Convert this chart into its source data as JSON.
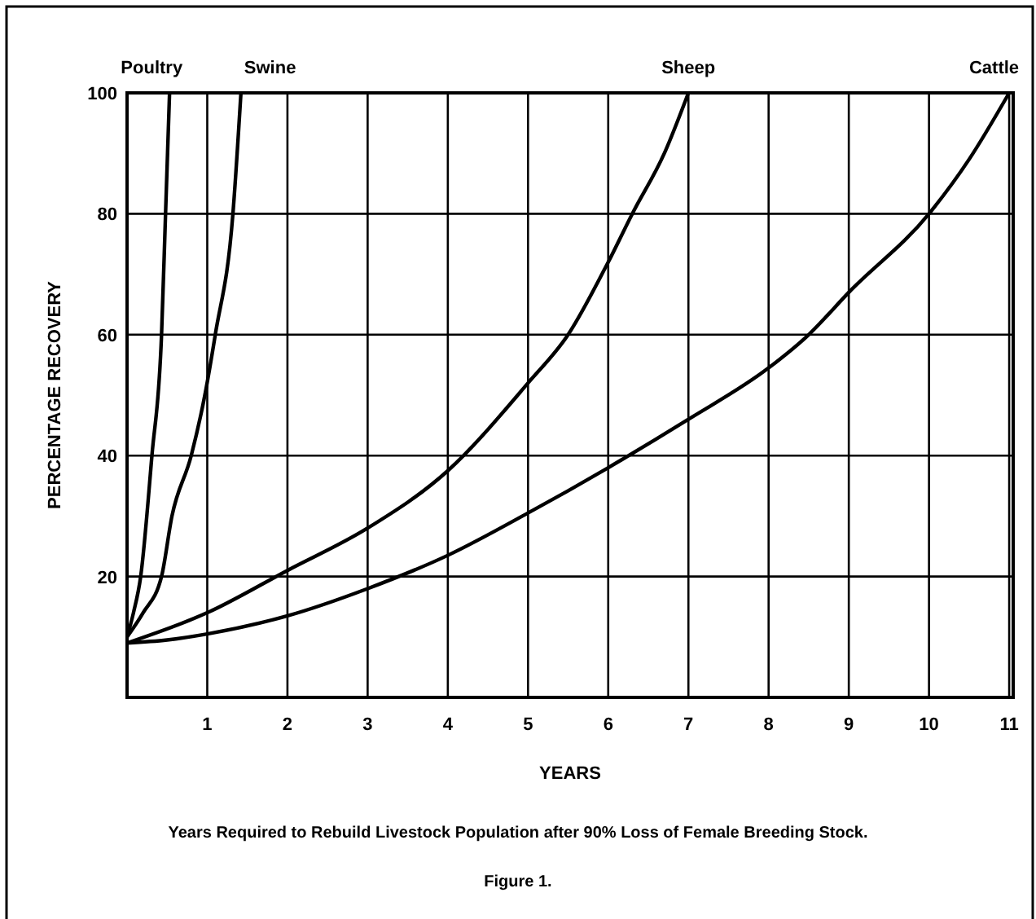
{
  "chart_data": {
    "type": "line",
    "xlabel": "YEARS",
    "ylabel": "PERCENTAGE RECOVERY",
    "xlim": [
      0,
      11.05
    ],
    "ylim": [
      0,
      100
    ],
    "xticks": [
      1,
      2,
      3,
      4,
      5,
      6,
      7,
      8,
      9,
      10,
      11
    ],
    "yticks": [
      20,
      40,
      60,
      80,
      100
    ],
    "grid": true,
    "legend": false,
    "line_style": "solid",
    "series": [
      {
        "name": "Poultry",
        "color": "#000000",
        "x": [
          0,
          0.08,
          0.17,
          0.31,
          0.43,
          0.48,
          0.53
        ],
        "values": [
          10,
          14,
          20,
          40,
          60,
          80,
          100
        ]
      },
      {
        "name": "Swine",
        "color": "#000000",
        "x": [
          0,
          0.2,
          0.43,
          0.56,
          0.8,
          0.97,
          1.1,
          1.32,
          1.42
        ],
        "values": [
          10,
          14,
          20,
          30,
          40,
          50,
          60,
          80,
          100
        ]
      },
      {
        "name": "Sheep",
        "color": "#000000",
        "x": [
          0,
          1,
          2,
          3,
          4,
          5,
          5.5,
          6,
          6.3,
          6.7,
          7
        ],
        "values": [
          9,
          14,
          21,
          28,
          37.5,
          52,
          60,
          72,
          80,
          90,
          100
        ]
      },
      {
        "name": "Cattle",
        "color": "#000000",
        "x": [
          0,
          0.5,
          1,
          2,
          3,
          4,
          5,
          6,
          7,
          8,
          8.5,
          9,
          10,
          10.5,
          11
        ],
        "values": [
          9,
          9.5,
          10.5,
          13.5,
          18,
          23.5,
          30.5,
          38,
          46,
          54.5,
          60,
          67,
          80,
          89,
          100
        ]
      }
    ],
    "annotations": [
      "Years Required to Rebuild Livestock Population after 90% Loss of Female Breeding Stock.",
      "Figure 1."
    ]
  }
}
